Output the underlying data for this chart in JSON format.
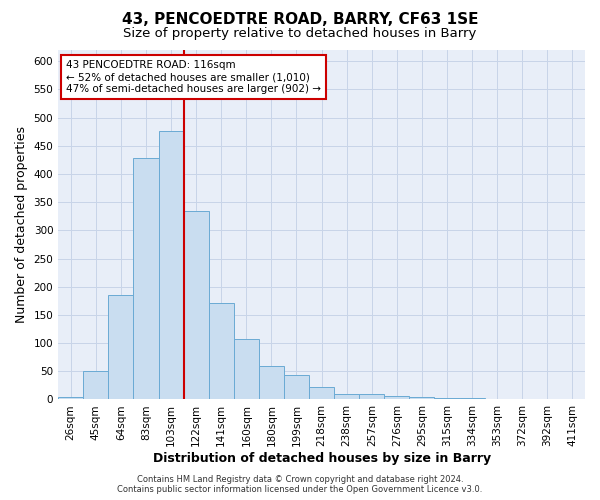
{
  "title_line1": "43, PENCOEDTRE ROAD, BARRY, CF63 1SE",
  "title_line2": "Size of property relative to detached houses in Barry",
  "xlabel": "Distribution of detached houses by size in Barry",
  "ylabel": "Number of detached properties",
  "categories": [
    "26sqm",
    "45sqm",
    "64sqm",
    "83sqm",
    "103sqm",
    "122sqm",
    "141sqm",
    "160sqm",
    "180sqm",
    "199sqm",
    "218sqm",
    "238sqm",
    "257sqm",
    "276sqm",
    "295sqm",
    "315sqm",
    "334sqm",
    "353sqm",
    "372sqm",
    "392sqm",
    "411sqm"
  ],
  "values": [
    5,
    50,
    185,
    428,
    476,
    335,
    172,
    107,
    60,
    43,
    22,
    10,
    10,
    7,
    5,
    3,
    2,
    1,
    1,
    1,
    1
  ],
  "bar_color": "#c9ddf0",
  "bar_edge_color": "#6aaad4",
  "highlight_bar_index": 4,
  "red_line_after_index": 4,
  "highlight_color": "#cc0000",
  "annotation_text": "43 PENCOEDTRE ROAD: 116sqm\n← 52% of detached houses are smaller (1,010)\n47% of semi-detached houses are larger (902) →",
  "annotation_box_color": "#ffffff",
  "annotation_box_edge": "#cc0000",
  "ylim": [
    0,
    620
  ],
  "yticks": [
    0,
    50,
    100,
    150,
    200,
    250,
    300,
    350,
    400,
    450,
    500,
    550,
    600
  ],
  "grid_color": "#c8d4e8",
  "background_color": "#e8eef8",
  "footer_line1": "Contains HM Land Registry data © Crown copyright and database right 2024.",
  "footer_line2": "Contains public sector information licensed under the Open Government Licence v3.0.",
  "title_fontsize": 11,
  "subtitle_fontsize": 9.5,
  "tick_fontsize": 7.5,
  "ylabel_fontsize": 9,
  "xlabel_fontsize": 9,
  "annotation_fontsize": 7.5,
  "footer_fontsize": 6
}
